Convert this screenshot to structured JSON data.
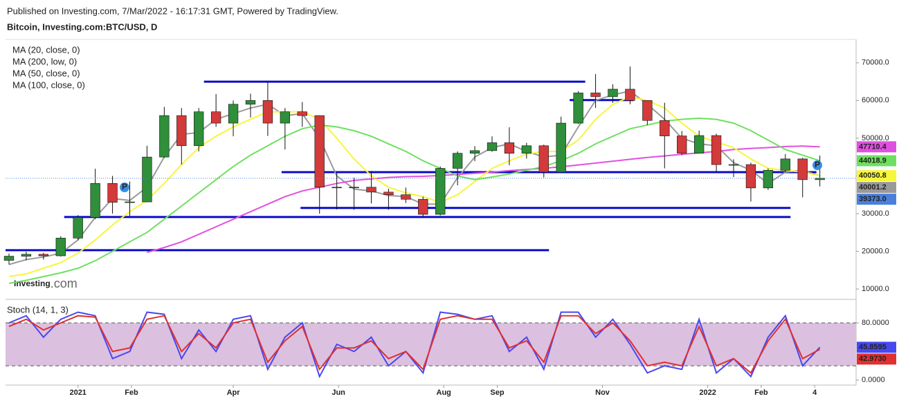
{
  "chart_data": [
    {
      "type": "candlestick",
      "source": "Published on Investing.com, 7/Mar/2022 - 16:17:31 GMT, Powered by TradingView.",
      "title": "Bitcoin, Investing.com:BTC/USD, D",
      "watermark": [
        "Investing",
        ".com"
      ],
      "xlim": [
        -42,
        451
      ],
      "ylim": [
        7800,
        76200
      ],
      "yticks": [
        {
          "value": 10000,
          "label": "10000.0"
        },
        {
          "value": 20000,
          "label": "20000.0"
        },
        {
          "value": 30000,
          "label": "30000.0"
        },
        {
          "value": 40000,
          "label": "40000.0"
        },
        {
          "value": 50000,
          "label": "50000.0"
        },
        {
          "value": 60000,
          "label": "60000.0"
        },
        {
          "value": 70000,
          "label": "70000.0"
        }
      ],
      "x": [
        -40,
        -30,
        -20,
        -10,
        0,
        10,
        20,
        30,
        40,
        50,
        60,
        70,
        80,
        90,
        100,
        110,
        120,
        130,
        140,
        150,
        160,
        170,
        180,
        190,
        200,
        210,
        220,
        230,
        240,
        250,
        260,
        270,
        280,
        290,
        300,
        310,
        320,
        330,
        340,
        350,
        360,
        370,
        380,
        390,
        400,
        410,
        420,
        430
      ],
      "open": [
        17600,
        18700,
        19200,
        18800,
        23500,
        29000,
        38000,
        33000,
        33100,
        45000,
        56000,
        48000,
        57000,
        54000,
        59000,
        60000,
        54000,
        57000,
        56000,
        37000,
        37000,
        37000,
        35700,
        35000,
        33800,
        29800,
        42000,
        46000,
        46700,
        48800,
        46000,
        48000,
        41000,
        54000,
        62000,
        61000,
        63000,
        60000,
        54700,
        50600,
        46000,
        50700,
        43000,
        43000,
        36800,
        41500,
        44500,
        39000
      ],
      "high": [
        19400,
        19900,
        19600,
        24000,
        29600,
        41900,
        40000,
        38500,
        48000,
        58300,
        58000,
        58000,
        61700,
        60000,
        61800,
        64900,
        58000,
        59600,
        56000,
        40800,
        39500,
        41300,
        36600,
        36900,
        34500,
        42500,
        46500,
        47900,
        50500,
        52900,
        48800,
        48300,
        55700,
        62500,
        67000,
        64300,
        69000,
        60000,
        59400,
        51900,
        52000,
        51200,
        44400,
        43500,
        42000,
        45800,
        44800,
        45400
      ],
      "low": [
        16500,
        17600,
        17800,
        18600,
        23000,
        28500,
        30000,
        29400,
        33000,
        44800,
        43000,
        46500,
        53000,
        50500,
        55500,
        50600,
        47000,
        53000,
        30000,
        31100,
        31000,
        32700,
        31000,
        32800,
        29300,
        29500,
        37500,
        43900,
        46400,
        42800,
        44600,
        39600,
        41000,
        53800,
        58000,
        59400,
        59000,
        53500,
        42000,
        45500,
        46000,
        41000,
        39700,
        33200,
        36300,
        41000,
        34300,
        37200
      ],
      "close": [
        18700,
        19200,
        18800,
        23500,
        29000,
        38000,
        33000,
        33100,
        45000,
        56000,
        48000,
        57000,
        54000,
        59000,
        60000,
        54000,
        57000,
        56000,
        37000,
        37000,
        37000,
        35700,
        35000,
        33800,
        29800,
        42000,
        46000,
        46700,
        48800,
        46000,
        48000,
        41000,
        54000,
        62000,
        61000,
        63000,
        60000,
        54700,
        50600,
        46000,
        50700,
        43000,
        43000,
        36800,
        41500,
        44500,
        39000,
        39373
      ],
      "last_label": "39373.0",
      "up_color": "#2f8f3a",
      "down_color": "#d33a3a",
      "price_line_color": "#4a80dc",
      "levels": [
        {
          "value": 65000,
          "x": [
            73,
            294
          ]
        },
        {
          "value": 60100,
          "x": [
            285,
            322
          ]
        },
        {
          "value": 41000,
          "x": [
            118,
            428
          ]
        },
        {
          "value": 31500,
          "x": [
            129,
            413
          ]
        },
        {
          "value": 29100,
          "x": [
            -8,
            413
          ]
        },
        {
          "value": 20300,
          "x": [
            -42,
            273
          ]
        }
      ],
      "level_color": "#0a0ac8",
      "series": [
        {
          "name": "MA (20, close, 0)",
          "color": "#9a9a9a",
          "values": [
            16500,
            17800,
            18500,
            19500,
            23000,
            29000,
            34000,
            33500,
            37000,
            45000,
            51000,
            51500,
            55000,
            56500,
            58000,
            59000,
            56000,
            56500,
            50000,
            40000,
            36500,
            36000,
            34800,
            34500,
            32500,
            32500,
            39500,
            45000,
            47500,
            48500,
            46500,
            45000,
            45500,
            53000,
            60000,
            61500,
            62500,
            59000,
            55000,
            50000,
            48500,
            48000,
            43500,
            41500,
            38000,
            41000,
            41500,
            40001.2
          ]
        },
        {
          "name": "MA (200, low, 0)",
          "color": "#e050e0",
          "values": [
            null,
            null,
            null,
            null,
            null,
            null,
            null,
            null,
            19700,
            21000,
            22500,
            24500,
            26500,
            28500,
            30500,
            32500,
            34500,
            36000,
            37000,
            38000,
            38800,
            39200,
            39600,
            39800,
            39900,
            40100,
            40400,
            40700,
            41000,
            41400,
            41700,
            42000,
            42400,
            42900,
            43400,
            43900,
            44400,
            44900,
            45300,
            45700,
            46100,
            46500,
            47000,
            47300,
            47500,
            47800,
            47900,
            47710.4
          ]
        },
        {
          "name": "MA (50, close, 0)",
          "color": "#f6f63a",
          "values": [
            13300,
            14000,
            15500,
            17000,
            19500,
            23000,
            27000,
            30500,
            33500,
            38000,
            43000,
            47500,
            50500,
            53000,
            55000,
            57000,
            57000,
            57000,
            55000,
            50000,
            44500,
            40000,
            37000,
            35500,
            34500,
            33000,
            35000,
            38500,
            42000,
            44000,
            45800,
            46500,
            46500,
            49500,
            55000,
            59000,
            61000,
            60000,
            58000,
            54000,
            50500,
            49000,
            47500,
            44500,
            42000,
            41500,
            41000,
            40050.8
          ]
        },
        {
          "name": "MA (100, close, 0)",
          "color": "#6ee060",
          "values": [
            11500,
            12300,
            13300,
            14300,
            15500,
            17500,
            20000,
            22500,
            25000,
            28500,
            32000,
            35500,
            39000,
            42500,
            45500,
            48000,
            50500,
            52500,
            53500,
            53000,
            52000,
            50500,
            48500,
            46500,
            44000,
            42000,
            40000,
            39000,
            39700,
            40500,
            41500,
            42500,
            44000,
            46000,
            48500,
            50500,
            52500,
            53500,
            54500,
            55000,
            55300,
            55000,
            54000,
            52000,
            49500,
            47000,
            45500,
            44018.9
          ]
        }
      ]
    },
    {
      "type": "line",
      "title": "Stoch (14, 1, 3)",
      "xlim": [
        -42,
        451
      ],
      "ylim": [
        -7,
        109
      ],
      "yticks": [
        {
          "value": 80,
          "label": "80.0000"
        },
        {
          "value": 0,
          "label": "0.0000"
        }
      ],
      "band": [
        20,
        80
      ],
      "band_color": "#dcc0e0",
      "xticks": [
        {
          "value": 0,
          "label": "2021"
        },
        {
          "value": 31,
          "label": "Feb"
        },
        {
          "value": 90,
          "label": "Apr"
        },
        {
          "value": 151,
          "label": "Jun"
        },
        {
          "value": 212,
          "label": "Aug"
        },
        {
          "value": 243,
          "label": "Sep"
        },
        {
          "value": 304,
          "label": "Nov"
        },
        {
          "value": 365,
          "label": "2022"
        },
        {
          "value": 396,
          "label": "Feb"
        },
        {
          "value": 427,
          "label": "4"
        }
      ],
      "x": [
        -40,
        -30,
        -20,
        -10,
        0,
        10,
        20,
        30,
        40,
        50,
        60,
        70,
        80,
        90,
        100,
        110,
        120,
        130,
        140,
        150,
        160,
        170,
        180,
        190,
        200,
        210,
        220,
        230,
        240,
        250,
        260,
        270,
        280,
        290,
        300,
        310,
        320,
        330,
        340,
        350,
        360,
        370,
        380,
        390,
        400,
        410,
        420,
        430
      ],
      "series": [
        {
          "color": "#4848f0",
          "values": [
            80,
            90,
            60,
            85,
            95,
            90,
            30,
            40,
            95,
            92,
            30,
            70,
            40,
            85,
            90,
            15,
            60,
            80,
            5,
            50,
            40,
            60,
            20,
            40,
            10,
            95,
            92,
            85,
            90,
            40,
            60,
            15,
            95,
            95,
            60,
            85,
            50,
            10,
            20,
            15,
            85,
            10,
            30,
            5,
            60,
            90,
            20,
            45.8595
          ]
        },
        {
          "color": "#e03030",
          "values": [
            75,
            85,
            70,
            80,
            90,
            88,
            40,
            45,
            85,
            90,
            40,
            65,
            45,
            80,
            85,
            25,
            55,
            75,
            15,
            45,
            45,
            55,
            30,
            40,
            15,
            85,
            90,
            85,
            85,
            45,
            55,
            25,
            90,
            90,
            65,
            80,
            55,
            20,
            25,
            20,
            75,
            20,
            30,
            10,
            55,
            85,
            30,
            42.973
          ],
          "last_label": "42.9730"
        }
      ]
    }
  ]
}
